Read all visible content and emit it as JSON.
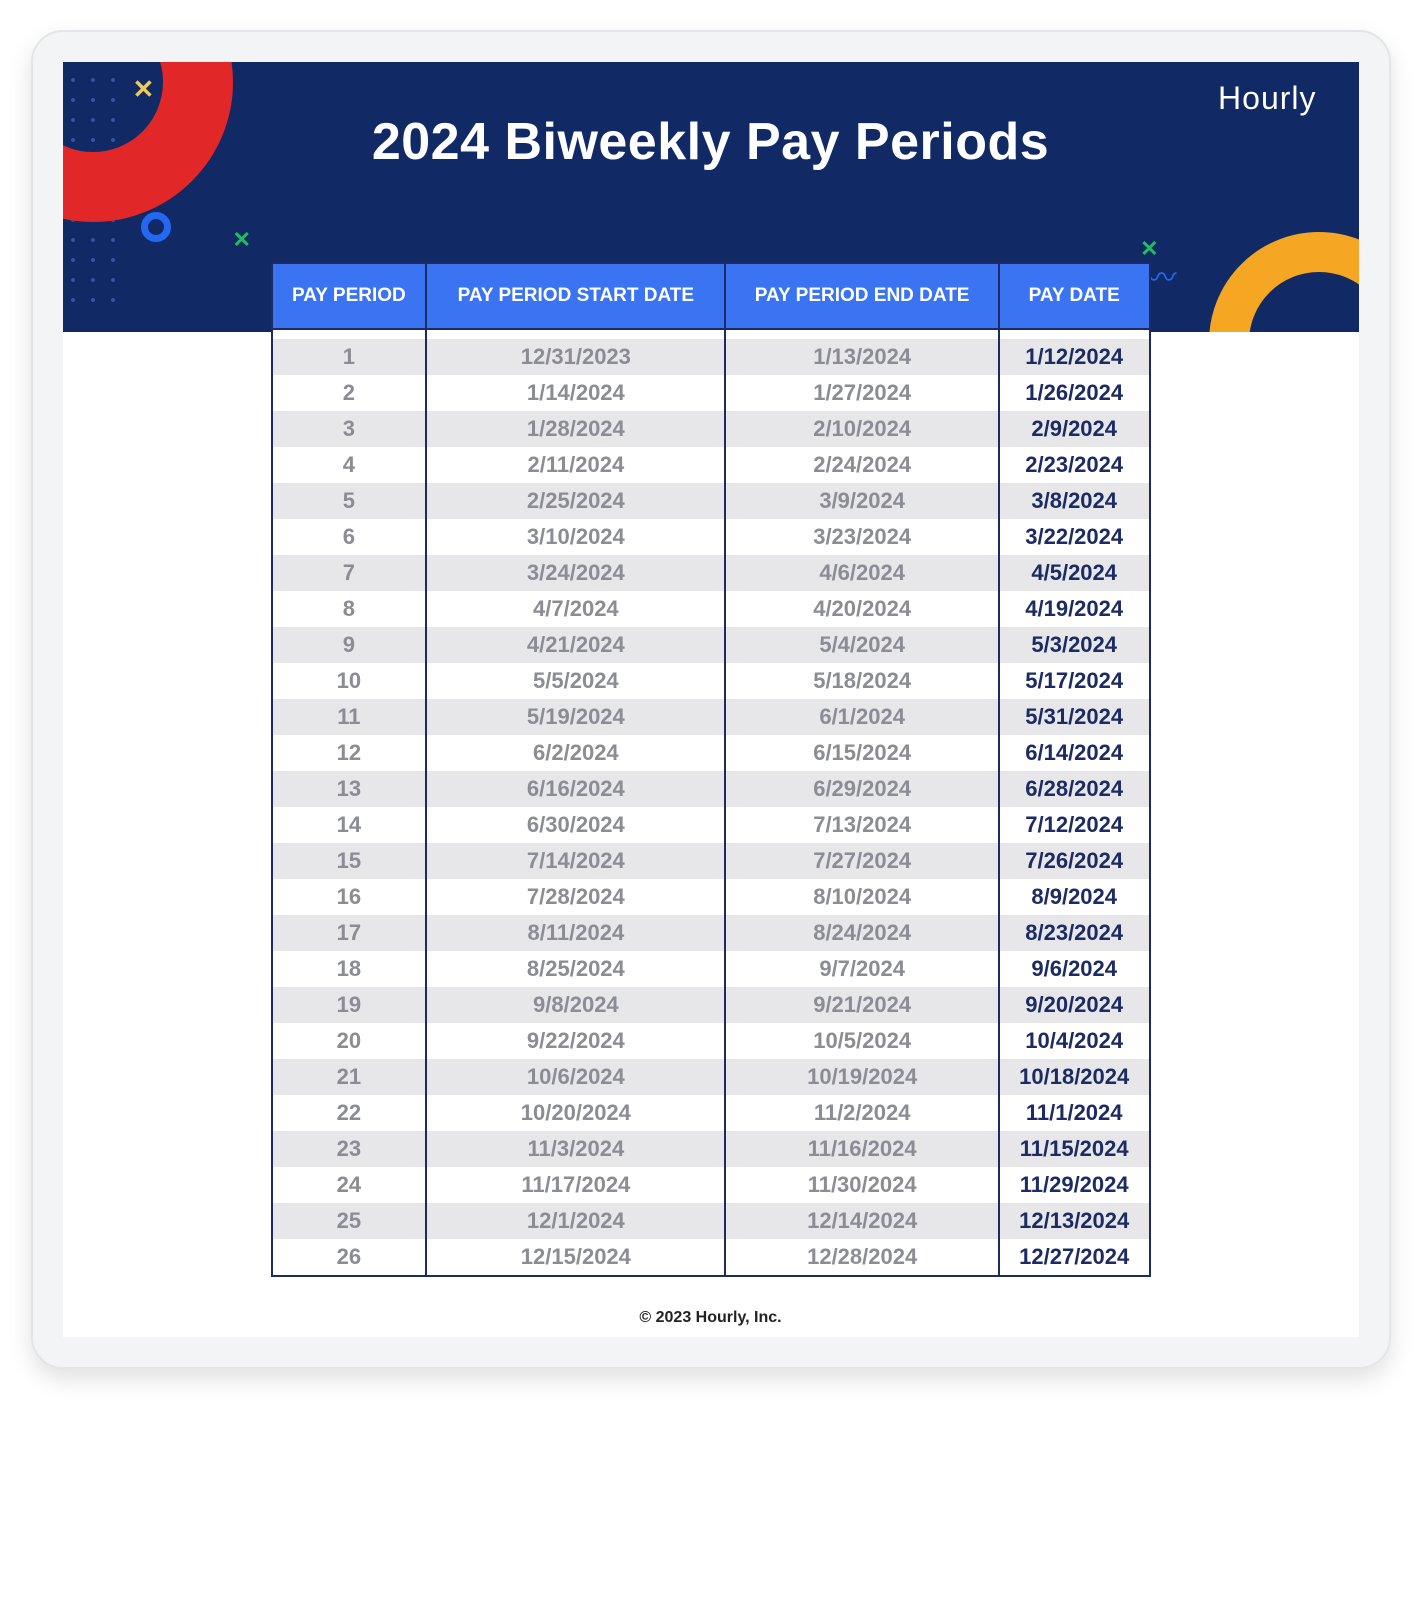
{
  "banner": {
    "title": "2024 Biweekly Pay Periods",
    "brand": "Hourly",
    "bg_color": "#112a66",
    "accent_red": "#e12727",
    "accent_orange": "#f5a623",
    "accent_blue": "#2468f2",
    "accent_green": "#1fbf5f",
    "accent_yellow": "#f7c948"
  },
  "table": {
    "type": "table",
    "header_bg": "#3a74f2",
    "header_text_color": "#ffffff",
    "border_color": "#1c2b63",
    "row_alt_bg": "#e7e7ea",
    "row_main_bg": "#ffffff",
    "muted_text_color": "#8b8c94",
    "paydate_text_color": "#1c2b63",
    "font_size_body": 22,
    "font_size_header": 19,
    "columns": [
      "PAY PERIOD",
      "PAY PERIOD START DATE",
      "PAY PERIOD END DATE",
      "PAY DATE"
    ],
    "rows": [
      [
        "1",
        "12/31/2023",
        "1/13/2024",
        "1/12/2024"
      ],
      [
        "2",
        "1/14/2024",
        "1/27/2024",
        "1/26/2024"
      ],
      [
        "3",
        "1/28/2024",
        "2/10/2024",
        "2/9/2024"
      ],
      [
        "4",
        "2/11/2024",
        "2/24/2024",
        "2/23/2024"
      ],
      [
        "5",
        "2/25/2024",
        "3/9/2024",
        "3/8/2024"
      ],
      [
        "6",
        "3/10/2024",
        "3/23/2024",
        "3/22/2024"
      ],
      [
        "7",
        "3/24/2024",
        "4/6/2024",
        "4/5/2024"
      ],
      [
        "8",
        "4/7/2024",
        "4/20/2024",
        "4/19/2024"
      ],
      [
        "9",
        "4/21/2024",
        "5/4/2024",
        "5/3/2024"
      ],
      [
        "10",
        "5/5/2024",
        "5/18/2024",
        "5/17/2024"
      ],
      [
        "11",
        "5/19/2024",
        "6/1/2024",
        "5/31/2024"
      ],
      [
        "12",
        "6/2/2024",
        "6/15/2024",
        "6/14/2024"
      ],
      [
        "13",
        "6/16/2024",
        "6/29/2024",
        "6/28/2024"
      ],
      [
        "14",
        "6/30/2024",
        "7/13/2024",
        "7/12/2024"
      ],
      [
        "15",
        "7/14/2024",
        "7/27/2024",
        "7/26/2024"
      ],
      [
        "16",
        "7/28/2024",
        "8/10/2024",
        "8/9/2024"
      ],
      [
        "17",
        "8/11/2024",
        "8/24/2024",
        "8/23/2024"
      ],
      [
        "18",
        "8/25/2024",
        "9/7/2024",
        "9/6/2024"
      ],
      [
        "19",
        "9/8/2024",
        "9/21/2024",
        "9/20/2024"
      ],
      [
        "20",
        "9/22/2024",
        "10/5/2024",
        "10/4/2024"
      ],
      [
        "21",
        "10/6/2024",
        "10/19/2024",
        "10/18/2024"
      ],
      [
        "22",
        "10/20/2024",
        "11/2/2024",
        "11/1/2024"
      ],
      [
        "23",
        "11/3/2024",
        "11/16/2024",
        "11/15/2024"
      ],
      [
        "24",
        "11/17/2024",
        "11/30/2024",
        "11/29/2024"
      ],
      [
        "25",
        "12/1/2024",
        "12/14/2024",
        "12/13/2024"
      ],
      [
        "26",
        "12/15/2024",
        "12/28/2024",
        "12/27/2024"
      ]
    ]
  },
  "footer": {
    "copyright": "© 2023 Hourly, Inc."
  }
}
